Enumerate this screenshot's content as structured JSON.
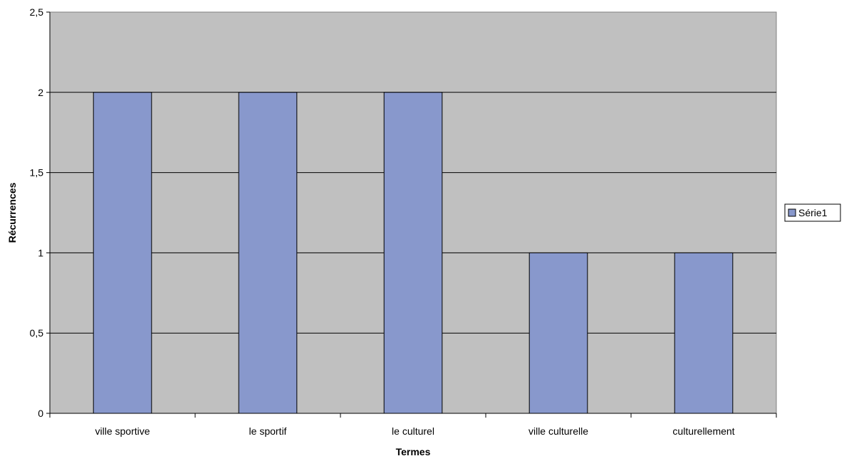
{
  "chart_data": {
    "type": "bar",
    "title": "",
    "xlabel": "Termes",
    "ylabel": "Récurrences",
    "categories": [
      "ville sportive",
      "le sportif",
      "le culturel",
      "ville culturelle",
      "culturellement"
    ],
    "series": [
      {
        "name": "Série1",
        "values": [
          2,
          2,
          2,
          1,
          1
        ]
      }
    ],
    "ylim": [
      0,
      2.5
    ],
    "yticks": [
      0,
      0.5,
      1,
      1.5,
      2,
      2.5
    ],
    "ytick_labels": [
      "0",
      "0,5",
      "1",
      "1,5",
      "2",
      "2,5"
    ],
    "grid": true,
    "legend_position": "right",
    "colors": {
      "plot_background": "#c0c0c0",
      "bar_fill": "#8898cc",
      "bar_stroke": "#000000",
      "gridline": "#000000"
    }
  }
}
